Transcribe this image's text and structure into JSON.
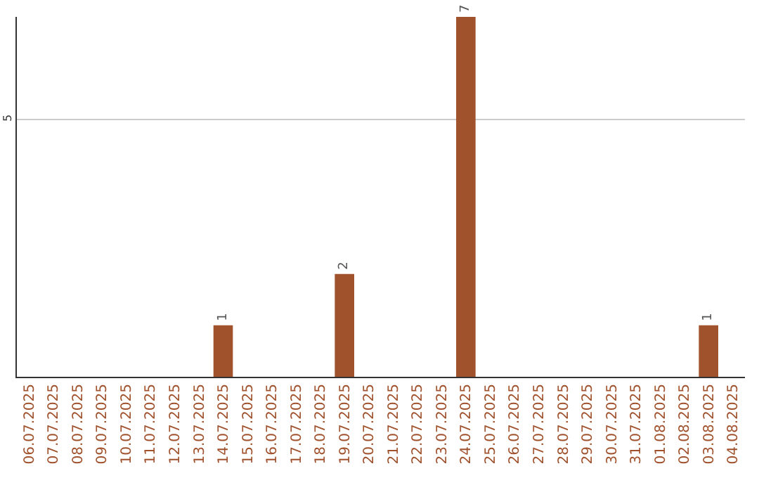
{
  "chart_data": {
    "type": "bar",
    "categories": [
      "06.07.2025",
      "07.07.2025",
      "08.07.2025",
      "09.07.2025",
      "10.07.2025",
      "11.07.2025",
      "12.07.2025",
      "13.07.2025",
      "14.07.2025",
      "15.07.2025",
      "16.07.2025",
      "17.07.2025",
      "18.07.2025",
      "19.07.2025",
      "20.07.2025",
      "21.07.2025",
      "22.07.2025",
      "23.07.2025",
      "24.07.2025",
      "25.07.2025",
      "26.07.2025",
      "27.07.2025",
      "28.07.2025",
      "29.07.2025",
      "30.07.2025",
      "31.07.2025",
      "01.08.2025",
      "02.08.2025",
      "03.08.2025",
      "04.08.2025"
    ],
    "values": [
      0,
      0,
      0,
      0,
      0,
      0,
      0,
      0,
      1,
      0,
      0,
      0,
      0,
      2,
      0,
      0,
      0,
      0,
      7,
      0,
      0,
      0,
      0,
      0,
      0,
      0,
      0,
      0,
      1,
      0
    ],
    "value_labels": [
      null,
      null,
      null,
      null,
      null,
      null,
      null,
      null,
      "1",
      null,
      null,
      null,
      null,
      "2",
      null,
      null,
      null,
      null,
      "7",
      null,
      null,
      null,
      null,
      null,
      null,
      null,
      null,
      null,
      "1",
      null
    ],
    "color": "#a0522d",
    "ylim": [
      0,
      7
    ],
    "yticks": [
      5
    ],
    "grid": "y",
    "legend": false
  }
}
